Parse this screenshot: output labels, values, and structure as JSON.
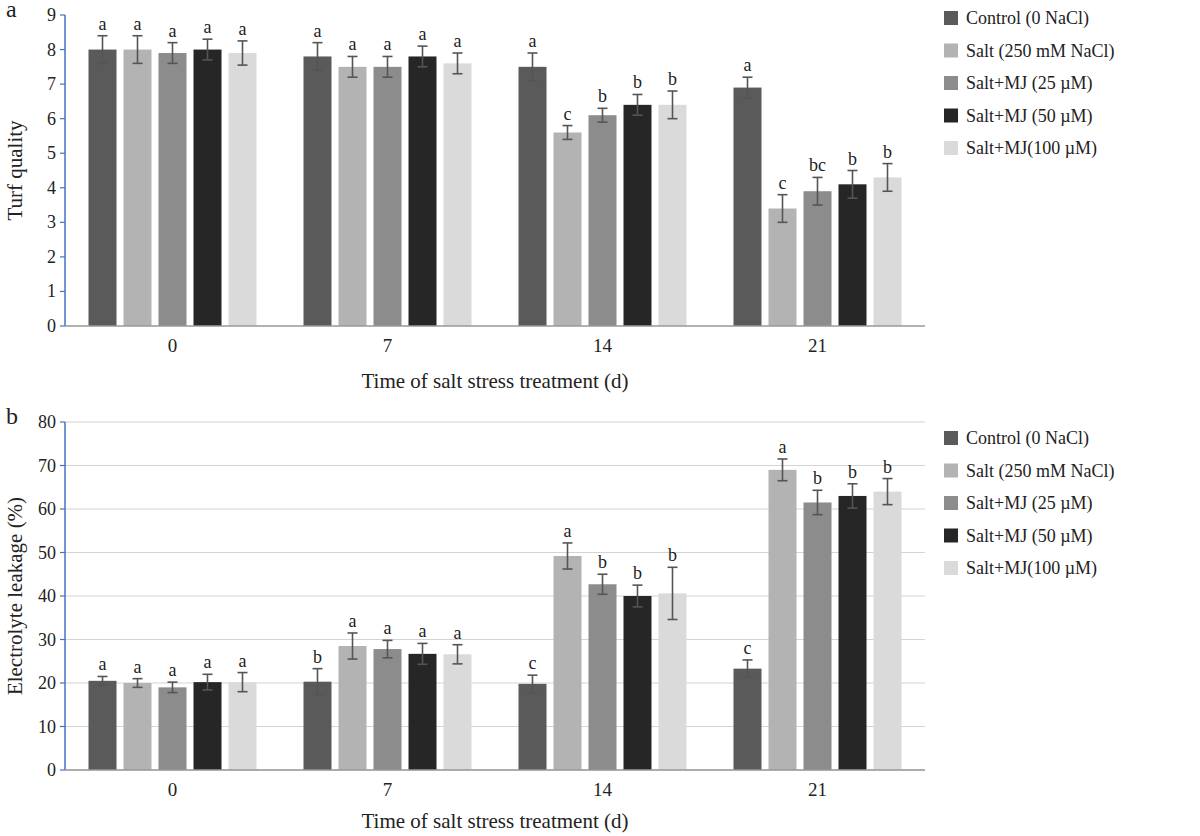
{
  "chart_data": [
    {
      "type": "bar",
      "panel": "a",
      "x_label": "Time of salt stress treatment (d)",
      "y_label": "Turf quality",
      "categories": [
        "0",
        "7",
        "14",
        "21"
      ],
      "ylim": [
        0,
        9
      ],
      "yticks": [
        0,
        1,
        2,
        3,
        4,
        5,
        6,
        7,
        8,
        9
      ],
      "grid": false,
      "legend": "right",
      "series": [
        {
          "name": "Control (0 NaCl)",
          "color": "#5a5a5a",
          "values": [
            8.0,
            7.8,
            7.5,
            6.9
          ],
          "errors": [
            0.4,
            0.4,
            0.4,
            0.3
          ],
          "letters": [
            "a",
            "a",
            "a",
            "a"
          ]
        },
        {
          "name": "Salt (250 mM NaCl)",
          "color": "#b3b3b3",
          "values": [
            8.0,
            7.5,
            5.6,
            3.4
          ],
          "errors": [
            0.4,
            0.3,
            0.2,
            0.4
          ],
          "letters": [
            "a",
            "a",
            "c",
            "c"
          ]
        },
        {
          "name": "Salt+MJ (25 µM)",
          "color": "#8c8c8c",
          "values": [
            7.9,
            7.5,
            6.1,
            3.9
          ],
          "errors": [
            0.3,
            0.3,
            0.2,
            0.4
          ],
          "letters": [
            "a",
            "a",
            "b",
            "bc"
          ]
        },
        {
          "name": "Salt+MJ (50 µM)",
          "color": "#262626",
          "values": [
            8.0,
            7.8,
            6.4,
            4.1
          ],
          "errors": [
            0.3,
            0.3,
            0.3,
            0.4
          ],
          "letters": [
            "a",
            "a",
            "b",
            "b"
          ]
        },
        {
          "name": "Salt+MJ(100 µM)",
          "color": "#dadada",
          "values": [
            7.9,
            7.6,
            6.4,
            4.3
          ],
          "errors": [
            0.35,
            0.3,
            0.4,
            0.4
          ],
          "letters": [
            "a",
            "a",
            "b",
            "b"
          ]
        }
      ]
    },
    {
      "type": "bar",
      "panel": "b",
      "x_label": "Time of salt stress treatment (d)",
      "y_label": "Electrolyte leakage (%)",
      "categories": [
        "0",
        "7",
        "14",
        "21"
      ],
      "ylim": [
        0,
        80
      ],
      "yticks": [
        0,
        10,
        20,
        30,
        40,
        50,
        60,
        70,
        80
      ],
      "grid": true,
      "legend": "right",
      "series": [
        {
          "name": "Control (0 NaCl)",
          "color": "#5a5a5a",
          "values": [
            20.5,
            20.3,
            19.8,
            23.3
          ],
          "errors": [
            1.0,
            3.0,
            2.0,
            2.0
          ],
          "letters": [
            "a",
            "b",
            "c",
            "c"
          ]
        },
        {
          "name": "Salt (250 mM NaCl)",
          "color": "#b3b3b3",
          "values": [
            20.0,
            28.5,
            49.2,
            69.0
          ],
          "errors": [
            1.0,
            3.0,
            3.0,
            2.5
          ],
          "letters": [
            "a",
            "a",
            "a",
            "a"
          ]
        },
        {
          "name": "Salt+MJ (25 µM)",
          "color": "#8c8c8c",
          "values": [
            19.0,
            27.8,
            42.7,
            61.5
          ],
          "errors": [
            1.2,
            2.0,
            2.3,
            2.8
          ],
          "letters": [
            "a",
            "a",
            "b",
            "b"
          ]
        },
        {
          "name": "Salt+MJ (50 µM)",
          "color": "#262626",
          "values": [
            20.2,
            26.7,
            40.0,
            63.0
          ],
          "errors": [
            1.8,
            2.4,
            2.5,
            2.8
          ],
          "letters": [
            "a",
            "a",
            "b",
            "b"
          ]
        },
        {
          "name": "Salt+MJ(100 µM)",
          "color": "#dadada",
          "values": [
            20.2,
            26.6,
            40.6,
            64.0
          ],
          "errors": [
            2.2,
            2.2,
            6.0,
            3.0
          ],
          "letters": [
            "a",
            "a",
            "b",
            "b"
          ]
        }
      ]
    }
  ]
}
